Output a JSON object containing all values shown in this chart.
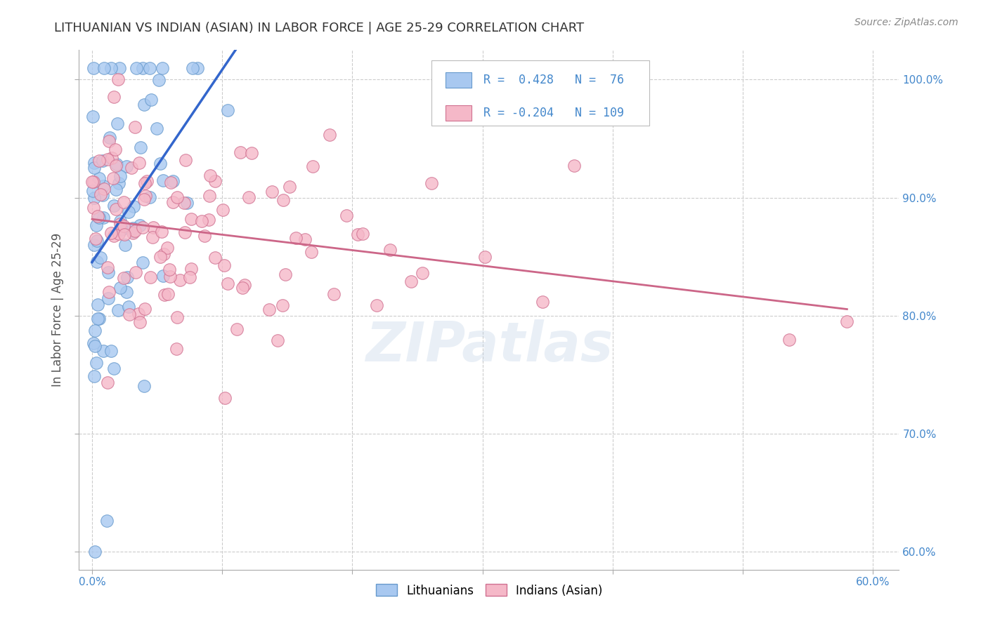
{
  "title": "LITHUANIAN VS INDIAN (ASIAN) IN LABOR FORCE | AGE 25-29 CORRELATION CHART",
  "source": "Source: ZipAtlas.com",
  "ylabel": "In Labor Force | Age 25-29",
  "xlim": [
    -0.01,
    0.62
  ],
  "ylim": [
    0.585,
    1.025
  ],
  "x_ticks": [
    0.0,
    0.1,
    0.2,
    0.3,
    0.4,
    0.5,
    0.6
  ],
  "x_tick_labels": [
    "0.0%",
    "",
    "",
    "",
    "",
    "",
    "60.0%"
  ],
  "y_ticks": [
    0.6,
    0.7,
    0.8,
    0.9,
    1.0
  ],
  "y_tick_labels": [
    "60.0%",
    "70.0%",
    "80.0%",
    "90.0%",
    "100.0%"
  ],
  "lit_R": 0.428,
  "lit_N": 76,
  "ind_R": -0.204,
  "ind_N": 109,
  "lit_color": "#a8c8f0",
  "lit_edge_color": "#6699cc",
  "ind_color": "#f5b8c8",
  "ind_edge_color": "#d07090",
  "trend_lit_color": "#3366cc",
  "trend_ind_color": "#cc6688",
  "background_color": "#ffffff",
  "grid_color": "#cccccc",
  "title_color": "#333333",
  "axis_color": "#4488cc",
  "watermark": "ZIPatlas"
}
